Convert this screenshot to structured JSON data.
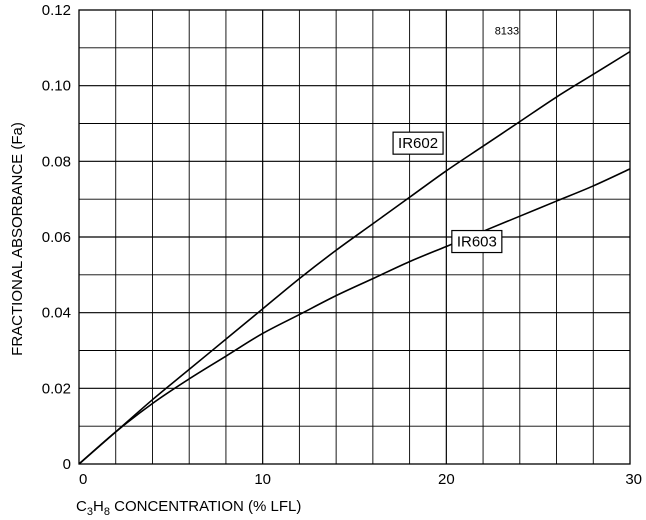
{
  "chart_data": {
    "type": "line",
    "title": "",
    "figure_id": "8133",
    "xlabel": {
      "prefix": "C",
      "sub1": "3",
      "mid": "H",
      "sub2": "8",
      "rest": " CONCENTRATION (% LFL)"
    },
    "ylabel": "FRACTIONAL ABSORBANCE (Fa)",
    "xlim": [
      0,
      30
    ],
    "ylim": [
      0,
      0.12
    ],
    "xticks": [
      0,
      10,
      20,
      30
    ],
    "xtick_labels": [
      "0",
      "10",
      "20",
      "30"
    ],
    "yticks": [
      0,
      0.02,
      0.04,
      0.06,
      0.08,
      0.1,
      0.12
    ],
    "ytick_labels": [
      "0",
      "0.02",
      "0.04",
      "0.06",
      "0.08",
      "0.10",
      "0.12"
    ],
    "grid": true,
    "series": [
      {
        "name": "IR602",
        "x": [
          0,
          2,
          4,
          6,
          8,
          10,
          12,
          14,
          16,
          18,
          20,
          22,
          24,
          26,
          28,
          30
        ],
        "y": [
          0,
          0.0085,
          0.017,
          0.025,
          0.033,
          0.041,
          0.049,
          0.0565,
          0.0635,
          0.0705,
          0.0775,
          0.084,
          0.0905,
          0.097,
          0.103,
          0.109
        ]
      },
      {
        "name": "IR603",
        "x": [
          0,
          2,
          4,
          6,
          8,
          10,
          12,
          14,
          16,
          18,
          20,
          22,
          24,
          26,
          28,
          30
        ],
        "y": [
          0,
          0.0085,
          0.016,
          0.0225,
          0.0285,
          0.0345,
          0.0395,
          0.0445,
          0.049,
          0.0535,
          0.0575,
          0.0615,
          0.0655,
          0.0695,
          0.0735,
          0.078
        ]
      }
    ]
  }
}
